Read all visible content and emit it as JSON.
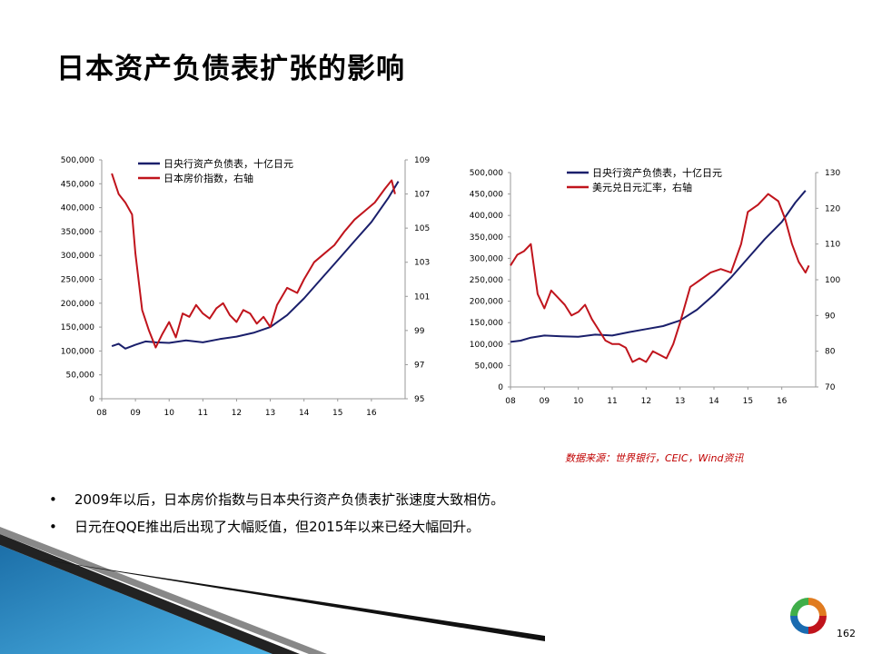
{
  "title": "日本资产负债表扩张的影响",
  "source": "数据来源：世界银行，CEIC，Wind资讯",
  "bullets": [
    "2009年以后，日本房价指数与日本央行资产负债表扩张速度大致相仿。",
    "日元在QQE推出后出现了大幅贬值，但2015年以来已经大幅回升。"
  ],
  "page_number": "162",
  "colors": {
    "series_navy": "#1a1f6b",
    "series_red": "#c0141c",
    "source_text": "#c00000",
    "deco_blue": "#2a8ec8"
  },
  "chart_data": [
    {
      "type": "line",
      "x_ticks": [
        "08",
        "09",
        "10",
        "11",
        "12",
        "13",
        "14",
        "15",
        "16"
      ],
      "left_axis": {
        "ticks": [
          "500,000",
          "450,000",
          "400,000",
          "350,000",
          "300,000",
          "250,000",
          "200,000",
          "150,000",
          "100,000",
          "50,000",
          "0"
        ],
        "range": [
          0,
          500000
        ]
      },
      "right_axis": {
        "ticks": [
          "109",
          "107",
          "105",
          "103",
          "101",
          "99",
          "97",
          "95"
        ],
        "range": [
          95,
          109
        ]
      },
      "series": [
        {
          "name": "日央行资产负债表，十亿日元",
          "axis": "left",
          "color": "#1a1f6b",
          "values": [
            [
              2008.3,
              110000
            ],
            [
              2008.5,
              115000
            ],
            [
              2008.7,
              105000
            ],
            [
              2009.0,
              113000
            ],
            [
              2009.3,
              120000
            ],
            [
              2009.6,
              118000
            ],
            [
              2010.0,
              117000
            ],
            [
              2010.5,
              122000
            ],
            [
              2011.0,
              118000
            ],
            [
              2011.5,
              125000
            ],
            [
              2012.0,
              130000
            ],
            [
              2012.5,
              138000
            ],
            [
              2013.0,
              150000
            ],
            [
              2013.5,
              175000
            ],
            [
              2014.0,
              210000
            ],
            [
              2014.5,
              250000
            ],
            [
              2015.0,
              290000
            ],
            [
              2015.5,
              330000
            ],
            [
              2016.0,
              370000
            ],
            [
              2016.5,
              420000
            ],
            [
              2016.8,
              455000
            ]
          ]
        },
        {
          "name": "日本房价指数，右轴",
          "axis": "right",
          "color": "#c0141c",
          "values": [
            [
              2008.3,
              108.2
            ],
            [
              2008.5,
              107.0
            ],
            [
              2008.7,
              106.5
            ],
            [
              2008.9,
              105.8
            ],
            [
              2009.0,
              103.5
            ],
            [
              2009.2,
              100.2
            ],
            [
              2009.4,
              99.0
            ],
            [
              2009.6,
              98.0
            ],
            [
              2009.8,
              98.8
            ],
            [
              2010.0,
              99.5
            ],
            [
              2010.2,
              98.6
            ],
            [
              2010.4,
              100.0
            ],
            [
              2010.6,
              99.8
            ],
            [
              2010.8,
              100.5
            ],
            [
              2011.0,
              100.0
            ],
            [
              2011.2,
              99.7
            ],
            [
              2011.4,
              100.3
            ],
            [
              2011.6,
              100.6
            ],
            [
              2011.8,
              99.9
            ],
            [
              2012.0,
              99.5
            ],
            [
              2012.2,
              100.2
            ],
            [
              2012.4,
              100.0
            ],
            [
              2012.6,
              99.4
            ],
            [
              2012.8,
              99.8
            ],
            [
              2013.0,
              99.2
            ],
            [
              2013.2,
              100.5
            ],
            [
              2013.5,
              101.5
            ],
            [
              2013.8,
              101.2
            ],
            [
              2014.0,
              102.0
            ],
            [
              2014.3,
              103.0
            ],
            [
              2014.6,
              103.5
            ],
            [
              2014.9,
              104.0
            ],
            [
              2015.2,
              104.8
            ],
            [
              2015.5,
              105.5
            ],
            [
              2015.8,
              106.0
            ],
            [
              2016.1,
              106.5
            ],
            [
              2016.4,
              107.3
            ],
            [
              2016.6,
              107.8
            ],
            [
              2016.7,
              107.0
            ]
          ]
        }
      ]
    },
    {
      "type": "line",
      "x_ticks": [
        "08",
        "09",
        "10",
        "11",
        "12",
        "13",
        "14",
        "15",
        "16"
      ],
      "left_axis": {
        "ticks": [
          "500,000",
          "450,000",
          "400,000",
          "350,000",
          "300,000",
          "250,000",
          "200,000",
          "150,000",
          "100,000",
          "50,000",
          "0"
        ],
        "range": [
          0,
          500000
        ]
      },
      "right_axis": {
        "ticks": [
          "130",
          "120",
          "110",
          "100",
          "90",
          "80",
          "70"
        ],
        "range": [
          70,
          130
        ]
      },
      "series": [
        {
          "name": "日央行资产负债表，十亿日元",
          "axis": "left",
          "color": "#1a1f6b",
          "values": [
            [
              2008.0,
              105000
            ],
            [
              2008.3,
              108000
            ],
            [
              2008.6,
              115000
            ],
            [
              2009.0,
              120000
            ],
            [
              2009.5,
              118000
            ],
            [
              2010.0,
              117000
            ],
            [
              2010.5,
              122000
            ],
            [
              2011.0,
              120000
            ],
            [
              2011.5,
              128000
            ],
            [
              2012.0,
              135000
            ],
            [
              2012.5,
              142000
            ],
            [
              2013.0,
              155000
            ],
            [
              2013.5,
              180000
            ],
            [
              2014.0,
              215000
            ],
            [
              2014.5,
              255000
            ],
            [
              2015.0,
              300000
            ],
            [
              2015.5,
              345000
            ],
            [
              2016.0,
              385000
            ],
            [
              2016.4,
              430000
            ],
            [
              2016.7,
              458000
            ]
          ]
        },
        {
          "name": "美元兑日元汇率，右轴",
          "axis": "right",
          "color": "#c0141c",
          "values": [
            [
              2008.0,
              104
            ],
            [
              2008.2,
              107
            ],
            [
              2008.4,
              108
            ],
            [
              2008.6,
              110
            ],
            [
              2008.8,
              96
            ],
            [
              2009.0,
              92
            ],
            [
              2009.2,
              97
            ],
            [
              2009.4,
              95
            ],
            [
              2009.6,
              93
            ],
            [
              2009.8,
              90
            ],
            [
              2010.0,
              91
            ],
            [
              2010.2,
              93
            ],
            [
              2010.4,
              89
            ],
            [
              2010.6,
              86
            ],
            [
              2010.8,
              83
            ],
            [
              2011.0,
              82
            ],
            [
              2011.2,
              82
            ],
            [
              2011.4,
              81
            ],
            [
              2011.6,
              77
            ],
            [
              2011.8,
              78
            ],
            [
              2012.0,
              77
            ],
            [
              2012.2,
              80
            ],
            [
              2012.4,
              79
            ],
            [
              2012.6,
              78
            ],
            [
              2012.8,
              82
            ],
            [
              2013.0,
              88
            ],
            [
              2013.3,
              98
            ],
            [
              2013.6,
              100
            ],
            [
              2013.9,
              102
            ],
            [
              2014.2,
              103
            ],
            [
              2014.5,
              102
            ],
            [
              2014.8,
              110
            ],
            [
              2015.0,
              119
            ],
            [
              2015.3,
              121
            ],
            [
              2015.6,
              124
            ],
            [
              2015.9,
              122
            ],
            [
              2016.1,
              117
            ],
            [
              2016.3,
              110
            ],
            [
              2016.5,
              105
            ],
            [
              2016.7,
              102
            ],
            [
              2016.8,
              104
            ]
          ]
        }
      ]
    }
  ]
}
